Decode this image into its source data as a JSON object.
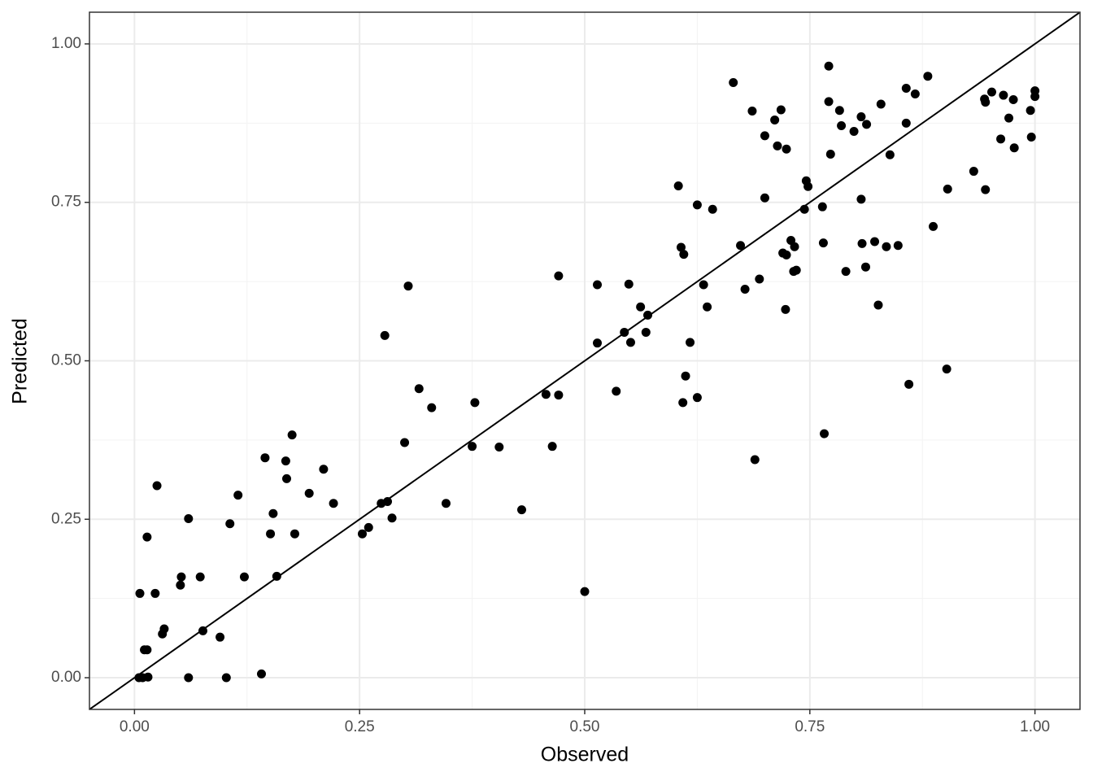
{
  "chart_data": {
    "type": "scatter",
    "x_label": "Observed",
    "y_label": "Predicted",
    "xlim": [
      -0.05,
      1.05
    ],
    "ylim": [
      -0.05,
      1.05
    ],
    "xticks": [
      {
        "value": 0,
        "label": "0.00"
      },
      {
        "value": 0.25,
        "label": "0.25"
      },
      {
        "value": 0.5,
        "label": "0.50"
      },
      {
        "value": 0.75,
        "label": "0.75"
      },
      {
        "value": 1,
        "label": "1.00"
      }
    ],
    "yticks": [
      {
        "value": 0,
        "label": "0.00"
      },
      {
        "value": 0.25,
        "label": "0.25"
      },
      {
        "value": 0.5,
        "label": "0.50"
      },
      {
        "value": 0.75,
        "label": "0.75"
      },
      {
        "value": 1,
        "label": "1.00"
      }
    ],
    "grid": true,
    "minor_grid": true,
    "identity_line": true,
    "color": "#000000",
    "x": [
      0.005,
      0.009,
      0.015,
      0.006,
      0.014,
      0.025,
      0.023,
      0.011,
      0.014,
      0.031,
      0.033,
      0.051,
      0.052,
      0.06,
      0.06,
      0.073,
      0.076,
      0.095,
      0.102,
      0.106,
      0.115,
      0.122,
      0.141,
      0.145,
      0.151,
      0.154,
      0.158,
      0.168,
      0.169,
      0.175,
      0.178,
      0.194,
      0.21,
      0.221,
      0.253,
      0.26,
      0.274,
      0.281,
      0.278,
      0.286,
      0.3,
      0.304,
      0.316,
      0.33,
      0.346,
      0.375,
      0.378,
      0.405,
      0.43,
      0.457,
      0.464,
      0.471,
      0.471,
      0.5,
      0.514,
      0.514,
      0.535,
      0.544,
      0.549,
      0.551,
      0.562,
      0.568,
      0.57,
      0.604,
      0.607,
      0.61,
      0.609,
      0.612,
      0.617,
      0.625,
      0.625,
      0.632,
      0.636,
      0.642,
      0.665,
      0.673,
      0.678,
      0.686,
      0.689,
      0.694,
      0.7,
      0.7,
      0.711,
      0.714,
      0.718,
      0.72,
      0.723,
      0.724,
      0.724,
      0.729,
      0.732,
      0.733,
      0.735,
      0.744,
      0.746,
      0.748,
      0.764,
      0.765,
      0.766,
      0.771,
      0.771,
      0.773,
      0.783,
      0.785,
      0.79,
      0.799,
      0.807,
      0.807,
      0.808,
      0.812,
      0.813,
      0.822,
      0.826,
      0.829,
      0.835,
      0.839,
      0.848,
      0.857,
      0.857,
      0.86,
      0.867,
      0.881,
      0.887,
      0.902,
      0.903,
      0.932,
      0.944,
      0.945,
      0.945,
      0.952,
      0.962,
      0.965,
      0.971,
      0.976,
      0.977,
      0.995,
      0.996,
      1.0,
      1.0
    ],
    "values": [
      0,
      0,
      0.001,
      0.133,
      0.222,
      0.303,
      0.133,
      0.044,
      0.044,
      0.069,
      0.077,
      0.146,
      0.159,
      0.251,
      0,
      0.159,
      0.074,
      0.064,
      0,
      0.243,
      0.288,
      0.159,
      0.006,
      0.347,
      0.227,
      0.259,
      0.16,
      0.342,
      0.314,
      0.383,
      0.227,
      0.291,
      0.329,
      0.275,
      0.227,
      0.237,
      0.275,
      0.278,
      0.54,
      0.252,
      0.371,
      0.618,
      0.456,
      0.426,
      0.275,
      0.365,
      0.434,
      0.364,
      0.265,
      0.447,
      0.365,
      0.446,
      0.634,
      0.136,
      0.528,
      0.62,
      0.452,
      0.545,
      0.621,
      0.529,
      0.585,
      0.545,
      0.572,
      0.776,
      0.679,
      0.668,
      0.434,
      0.476,
      0.529,
      0.442,
      0.746,
      0.62,
      0.585,
      0.739,
      0.939,
      0.682,
      0.613,
      0.894,
      0.344,
      0.629,
      0.855,
      0.757,
      0.88,
      0.839,
      0.896,
      0.67,
      0.581,
      0.667,
      0.834,
      0.69,
      0.641,
      0.68,
      0.643,
      0.739,
      0.784,
      0.775,
      0.743,
      0.686,
      0.385,
      0.965,
      0.909,
      0.826,
      0.895,
      0.871,
      0.641,
      0.862,
      0.885,
      0.755,
      0.685,
      0.648,
      0.873,
      0.688,
      0.588,
      0.905,
      0.68,
      0.825,
      0.682,
      0.93,
      0.875,
      0.463,
      0.921,
      0.949,
      0.712,
      0.487,
      0.771,
      0.799,
      0.913,
      0.908,
      0.77,
      0.924,
      0.85,
      0.919,
      0.883,
      0.912,
      0.836,
      0.895,
      0.853,
      0.926,
      0.917
    ]
  }
}
